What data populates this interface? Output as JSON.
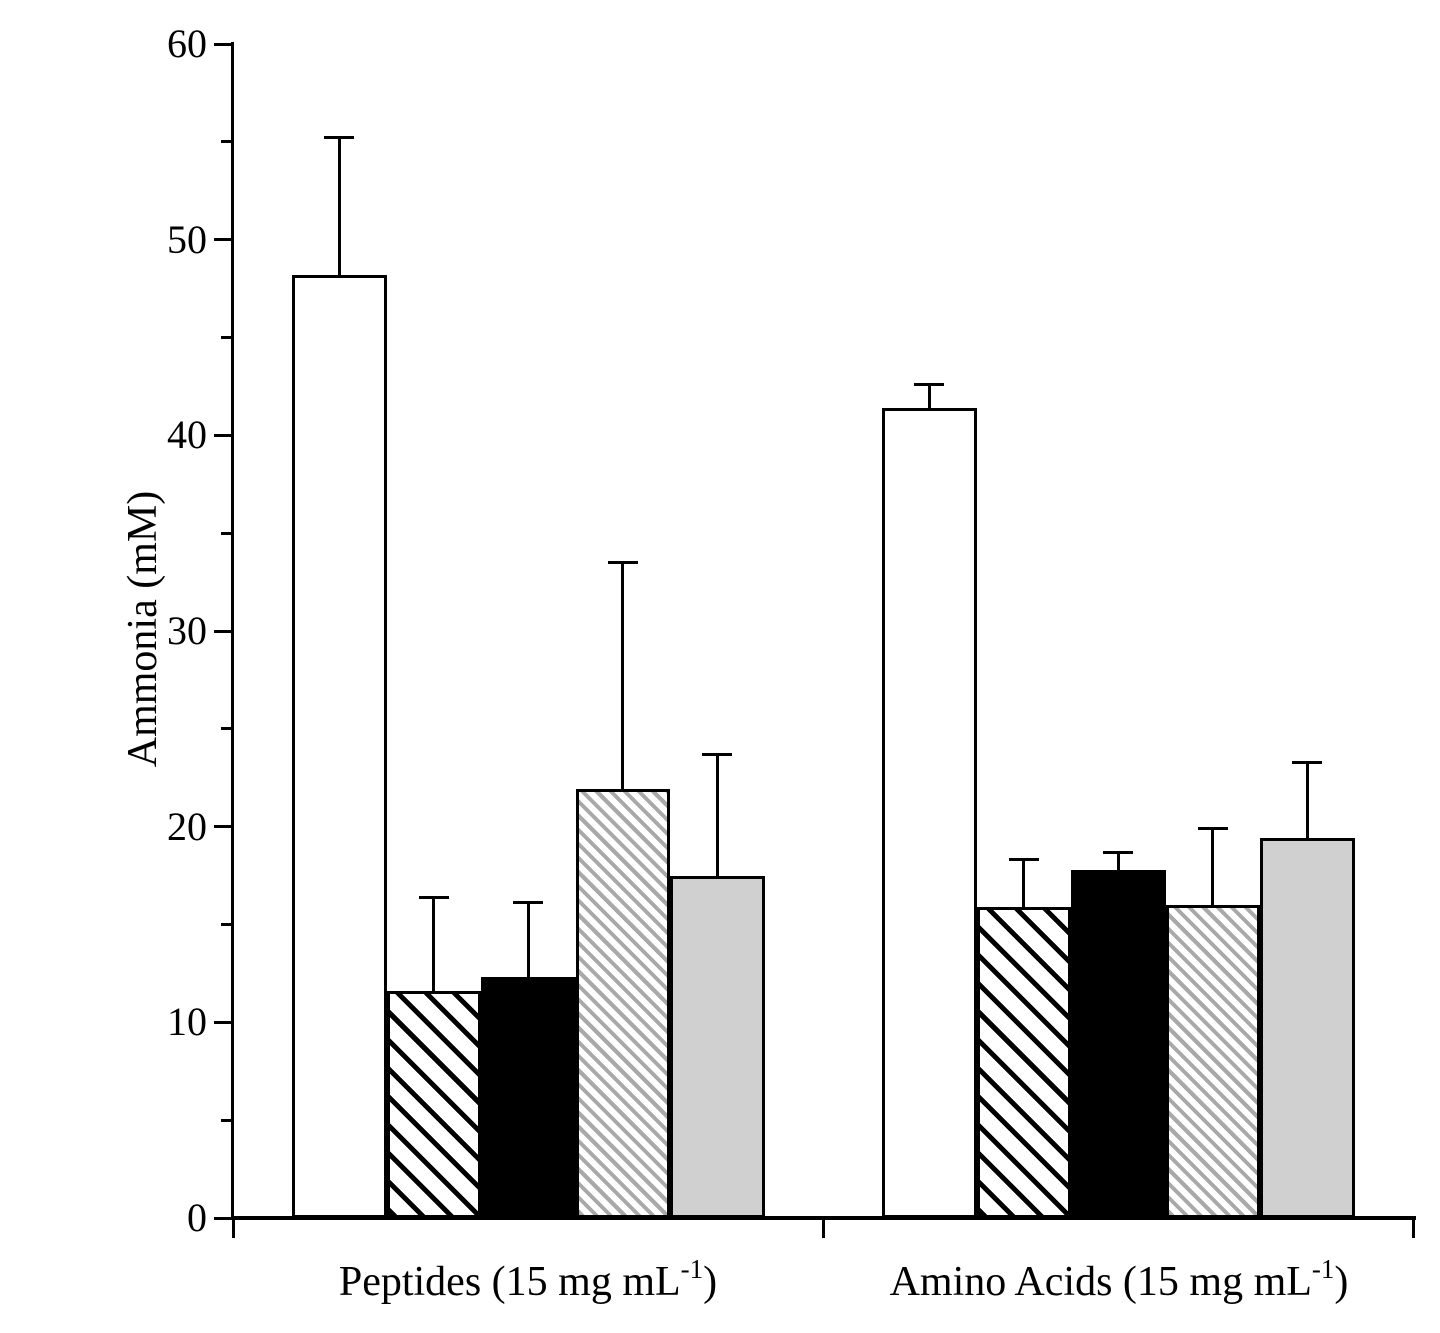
{
  "chart_data": {
    "type": "bar",
    "title": "",
    "ylabel": "Ammonia (mM)",
    "xlabel": "",
    "ylim": [
      0,
      60
    ],
    "y_major_ticks": [
      0,
      10,
      20,
      30,
      40,
      50,
      60
    ],
    "y_minor_ticks": [
      5,
      15,
      25,
      35,
      45,
      55
    ],
    "grid": false,
    "legend_position": "none",
    "bar_styles_legend": {
      "open": "white bar with black outline",
      "hatch-black": "black diagonal hatching",
      "solid-black": "solid black fill",
      "hatch-gray": "gray diagonal hatching",
      "solid-gray": "solid light gray fill"
    },
    "colors": {
      "axis": "#000000",
      "bar_outline": "#000000",
      "solid_gray_fill": "#d0d0d0",
      "hatch_gray_stroke": "#a9a9a9",
      "black": "#000000",
      "background": "#ffffff"
    },
    "groups": [
      {
        "label": {
          "prefix": "Peptides (15 mg mL",
          "superscript": "-1",
          "suffix": ")"
        },
        "bars": [
          {
            "style": "open",
            "value": 48.2,
            "error_plus": 7.0
          },
          {
            "style": "hatch-black",
            "value": 11.6,
            "error_plus": 4.8
          },
          {
            "style": "solid-black",
            "value": 12.3,
            "error_plus": 3.8
          },
          {
            "style": "hatch-gray",
            "value": 21.9,
            "error_plus": 11.6
          },
          {
            "style": "solid-gray",
            "value": 17.5,
            "error_plus": 6.2
          }
        ]
      },
      {
        "label": {
          "prefix": "Amino Acids (15 mg mL",
          "superscript": "-1",
          "suffix": ")"
        },
        "bars": [
          {
            "style": "open",
            "value": 41.4,
            "error_plus": 1.2
          },
          {
            "style": "hatch-black",
            "value": 15.9,
            "error_plus": 2.4
          },
          {
            "style": "solid-black",
            "value": 17.8,
            "error_plus": 0.9
          },
          {
            "style": "hatch-gray",
            "value": 16.0,
            "error_plus": 3.9
          },
          {
            "style": "solid-gray",
            "value": 19.4,
            "error_plus": 3.9
          }
        ]
      }
    ]
  }
}
